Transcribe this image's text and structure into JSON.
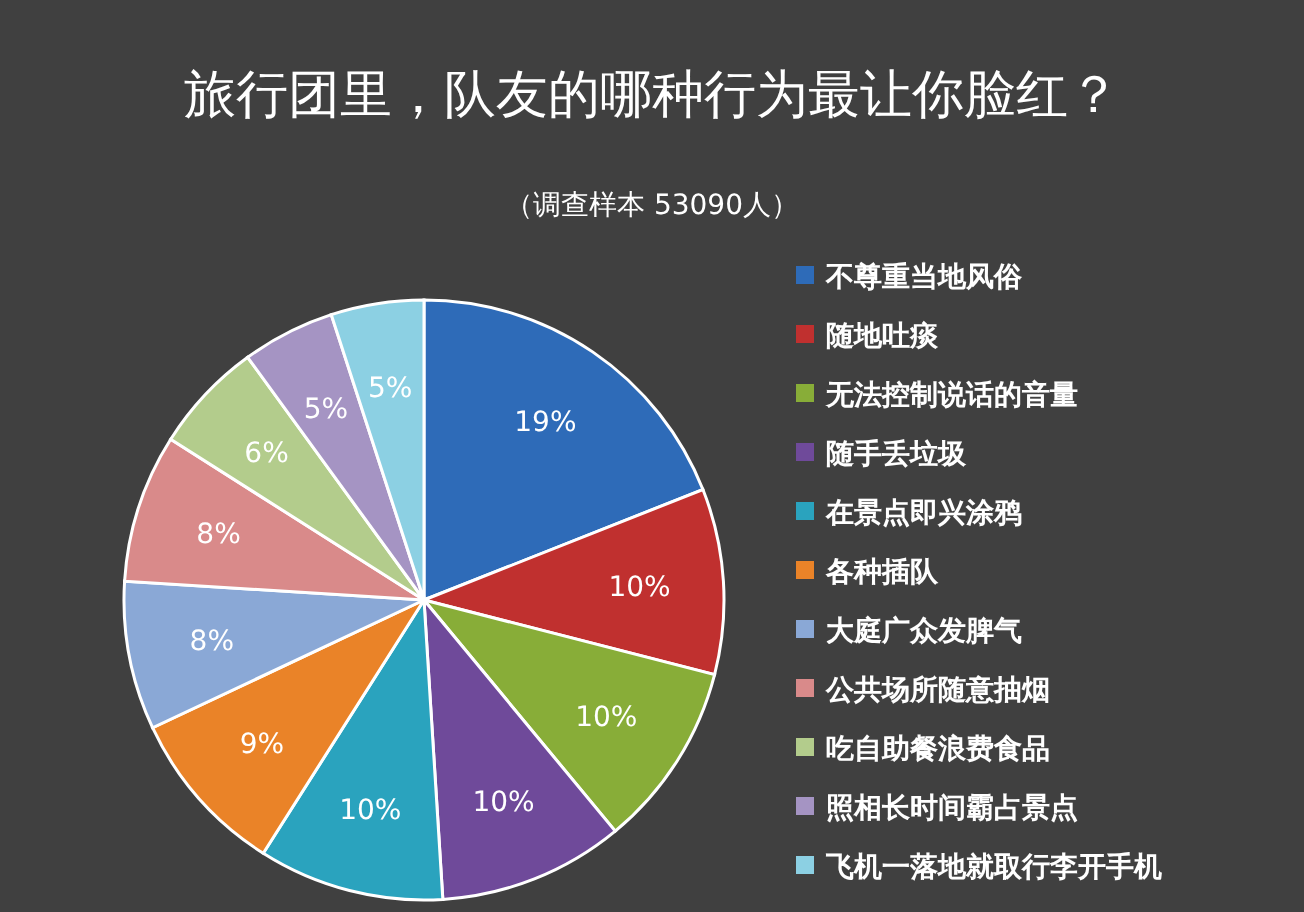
{
  "chart_data": {
    "type": "pie",
    "title": "旅行团里，队友的哪种行为最让你脸红？",
    "subtitle": "（调查样本 53090人）",
    "categories": [
      "不尊重当地风俗",
      "随地吐痰",
      "无法控制说话的音量",
      "随手丢垃圾",
      "在景点即兴涂鸦",
      "各种插队",
      "大庭广众发脾气",
      "公共场所随意抽烟",
      "吃自助餐浪费食品",
      "照相长时间霸占景点",
      "飞机一落地就取行李开手机"
    ],
    "values": [
      19,
      10,
      10,
      10,
      10,
      9,
      8,
      8,
      6,
      5,
      5
    ],
    "value_labels": [
      "19%",
      "10%",
      "10%",
      "10%",
      "10%",
      "9%",
      "8%",
      "8%",
      "6%",
      "5%",
      "5%"
    ],
    "colors": [
      "#2e6bb8",
      "#c0302f",
      "#88ad38",
      "#6f4a9a",
      "#2aa3be",
      "#ea8328",
      "#8aa8d6",
      "#d98a8a",
      "#b3cc8c",
      "#a594c3",
      "#8cd0e3"
    ],
    "legend": "right"
  }
}
